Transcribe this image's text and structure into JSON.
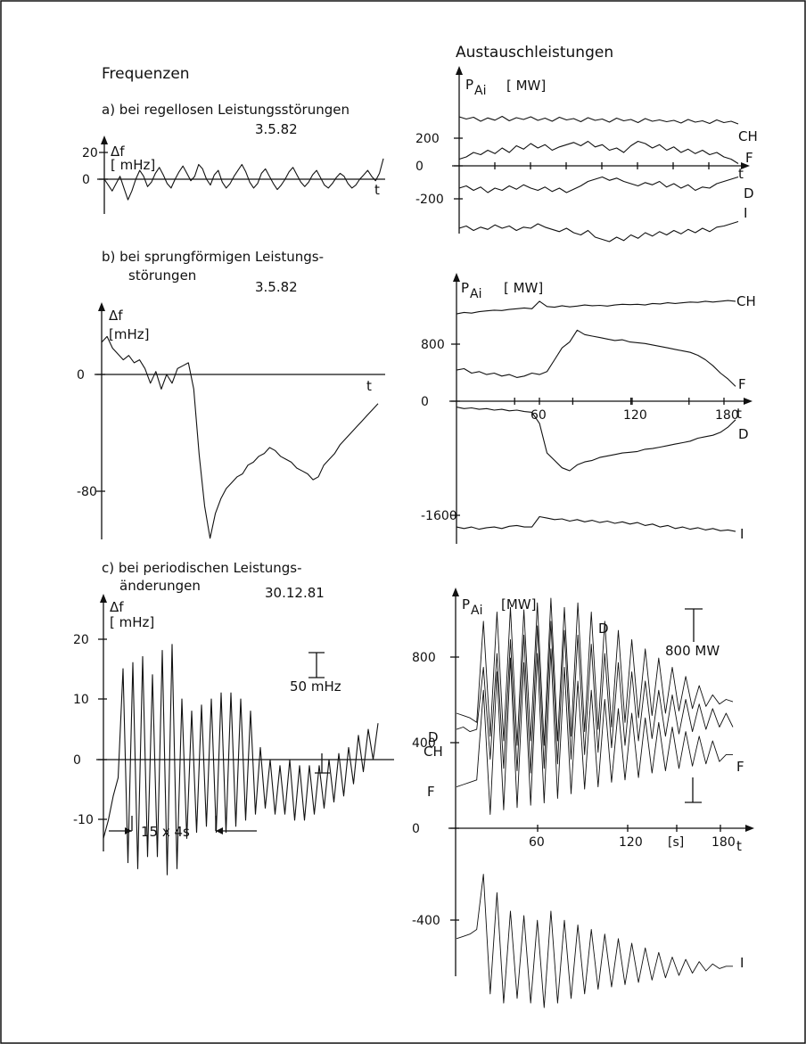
{
  "headings": {
    "left": "Frequenzen",
    "right": "Austauschleistungen"
  },
  "sections": {
    "a": {
      "label": "a) bei regellosen Leistungsstörungen",
      "date": "3.5.82"
    },
    "b": {
      "label_line1": "b) bei sprungförmigen Leistungs-",
      "label_line2": "störungen",
      "date": "3.5.82"
    },
    "c": {
      "label_line1": "c) bei periodischen Leistungs-",
      "label_line2": "änderungen",
      "date": "30.12.81"
    }
  },
  "annotations": {
    "c_freq_scale": "50 mHz",
    "c_freq_period": "15 x 4s",
    "c_power_scale": "800 MW"
  },
  "chart_data": [
    {
      "id": "a-freq",
      "type": "line",
      "ylabel": "Δf",
      "yunit": "[ mHz]",
      "xlabel": "t",
      "yticks": [
        "20",
        "0"
      ],
      "series": [
        {
          "values": [
            0,
            -4,
            -8,
            -3,
            2,
            -6,
            -14,
            -8,
            0,
            6,
            2,
            -5,
            -2,
            4,
            8,
            3,
            -3,
            -6,
            0,
            5,
            9,
            4,
            -1,
            2,
            10,
            7,
            0,
            -4,
            3,
            6,
            -2,
            -6,
            -3,
            2,
            6,
            10,
            5,
            -2,
            -6,
            -3,
            4,
            7,
            2,
            -3,
            -7,
            -4,
            0,
            5,
            8,
            3,
            -2,
            -5,
            -2,
            3,
            6,
            1,
            -4,
            -6,
            -3,
            1,
            4,
            2,
            -3,
            -6,
            -4,
            0,
            3,
            6,
            2,
            -1,
            4,
            14
          ]
        }
      ]
    },
    {
      "id": "a-power",
      "type": "line",
      "ylabel": "P",
      "ylabel_sub": "Ai",
      "yunit": "[ MW]",
      "xlabel": "t",
      "yticks": [
        "200",
        "0",
        "-200"
      ],
      "series": [
        {
          "name": "CH",
          "values": [
            230,
            220,
            228,
            210,
            225,
            215,
            232,
            212,
            226,
            218,
            230,
            214,
            224,
            210,
            228,
            216,
            222,
            208,
            226,
            214,
            220,
            206,
            224,
            212,
            218,
            204,
            222,
            210,
            216,
            208,
            214,
            202,
            218,
            206,
            212,
            200,
            216,
            204,
            210,
            198
          ]
        },
        {
          "name": "F",
          "values": [
            30,
            40,
            60,
            50,
            70,
            55,
            80,
            60,
            90,
            75,
            100,
            80,
            95,
            70,
            85,
            95,
            105,
            90,
            110,
            85,
            95,
            70,
            80,
            60,
            90,
            110,
            100,
            80,
            95,
            70,
            85,
            60,
            75,
            55,
            70,
            50,
            60,
            40,
            30,
            10
          ]
        },
        {
          "name": "D",
          "values": [
            -100,
            -90,
            -110,
            -95,
            -120,
            -100,
            -110,
            -90,
            -105,
            -85,
            -100,
            -110,
            -95,
            -115,
            -100,
            -120,
            -105,
            -90,
            -70,
            -60,
            -50,
            -65,
            -55,
            -70,
            -80,
            -90,
            -75,
            -85,
            -70,
            -95,
            -80,
            -100,
            -85,
            -110,
            -95,
            -100,
            -80,
            -70,
            -60,
            -50
          ]
        },
        {
          "name": "I",
          "values": [
            -280,
            -270,
            -290,
            -275,
            -285,
            -265,
            -280,
            -270,
            -290,
            -275,
            -280,
            -260,
            -275,
            -285,
            -295,
            -280,
            -300,
            -310,
            -290,
            -320,
            -330,
            -340,
            -320,
            -335,
            -310,
            -325,
            -300,
            -315,
            -295,
            -310,
            -290,
            -305,
            -285,
            -300,
            -280,
            -295,
            -275,
            -270,
            -260,
            -250
          ]
        }
      ]
    },
    {
      "id": "b-freq",
      "type": "line",
      "ylabel": "Δf",
      "yunit": "[mHz]",
      "xlabel": "t",
      "yticks": [
        "0",
        "-80"
      ],
      "series": [
        {
          "values": [
            22,
            26,
            18,
            14,
            10,
            13,
            8,
            10,
            4,
            -6,
            2,
            -10,
            0,
            -6,
            4,
            6,
            8,
            -10,
            -55,
            -90,
            -112,
            -95,
            -85,
            -78,
            -74,
            -70,
            -68,
            -62,
            -60,
            -56,
            -54,
            -50,
            -52,
            -56,
            -58,
            -60,
            -64,
            -66,
            -68,
            -72,
            -70,
            -62,
            -58,
            -54,
            -48,
            -44,
            -40,
            -36,
            -32,
            -28,
            -24,
            -20
          ]
        }
      ]
    },
    {
      "id": "b-power",
      "type": "line",
      "ylabel": "P",
      "ylabel_sub": "Ai",
      "yunit": "[ MW]",
      "xlabel": "t",
      "yticks": [
        "800",
        "0",
        "-1600"
      ],
      "xticks": [
        "60",
        "120",
        "180"
      ],
      "series": [
        {
          "name": "CH",
          "values": [
            1180,
            1200,
            1190,
            1210,
            1220,
            1230,
            1225,
            1240,
            1250,
            1260,
            1250,
            1350,
            1280,
            1270,
            1290,
            1275,
            1285,
            1300,
            1290,
            1295,
            1285,
            1300,
            1310,
            1305,
            1310,
            1300,
            1320,
            1315,
            1330,
            1320,
            1330,
            1340,
            1335,
            1350,
            1340,
            1350,
            1360,
            1350
          ]
        },
        {
          "name": "F",
          "values": [
            420,
            440,
            380,
            400,
            360,
            380,
            340,
            360,
            320,
            340,
            380,
            360,
            400,
            560,
            720,
            800,
            960,
            900,
            880,
            860,
            840,
            820,
            830,
            800,
            790,
            780,
            760,
            740,
            720,
            700,
            680,
            660,
            620,
            560,
            480,
            380,
            300,
            200
          ]
        },
        {
          "name": "D",
          "values": [
            -80,
            -100,
            -90,
            -110,
            -100,
            -120,
            -110,
            -130,
            -120,
            -140,
            -150,
            -300,
            -700,
            -800,
            -900,
            -940,
            -860,
            -820,
            -800,
            -760,
            -740,
            -720,
            -700,
            -690,
            -680,
            -650,
            -640,
            -620,
            -600,
            -580,
            -560,
            -540,
            -500,
            -480,
            -460,
            -420,
            -350,
            -250
          ]
        },
        {
          "name": "I",
          "values": [
            -1700,
            -1720,
            -1700,
            -1730,
            -1710,
            -1700,
            -1720,
            -1690,
            -1680,
            -1700,
            -1700,
            -1560,
            -1580,
            -1600,
            -1590,
            -1620,
            -1600,
            -1630,
            -1610,
            -1640,
            -1620,
            -1650,
            -1630,
            -1660,
            -1640,
            -1680,
            -1660,
            -1700,
            -1680,
            -1720,
            -1700,
            -1730,
            -1710,
            -1740,
            -1720,
            -1750,
            -1740,
            -1760
          ]
        }
      ]
    },
    {
      "id": "c-freq",
      "type": "line",
      "ylabel": "Δf",
      "yunit": "[ mHz]",
      "xlabel": "",
      "yticks": [
        "20",
        "10",
        "0",
        "-10"
      ],
      "series": [
        {
          "values": [
            -13,
            -10,
            -6,
            -3,
            15,
            -17,
            16,
            -18,
            17,
            -16,
            14,
            -16,
            18,
            -19,
            19,
            -18,
            10,
            -13,
            8,
            -12,
            9,
            -11,
            10,
            -12,
            11,
            -12,
            11,
            -11,
            10,
            -10,
            8,
            -9,
            2,
            -8,
            0,
            -9,
            -1,
            -9,
            0,
            -10,
            -1,
            -10,
            -1,
            -9,
            -1,
            -8,
            0,
            -7,
            1,
            -6,
            2,
            -4,
            4,
            -2,
            5,
            0,
            6
          ]
        }
      ]
    },
    {
      "id": "c-power",
      "type": "line",
      "ylabel": "P",
      "ylabel_sub": "Ai",
      "yunit": "[MW]",
      "xlabel": "t",
      "yticks": [
        "800",
        "400",
        "0",
        "-400"
      ],
      "xticks": [
        "60",
        "120",
        "[s]",
        "180"
      ],
      "series": [
        {
          "name": "D",
          "values": [
            500,
            490,
            480,
            460,
            900,
            400,
            940,
            380,
            960,
            360,
            950,
            380,
            980,
            360,
            1000,
            380,
            960,
            400,
            980,
            420,
            940,
            430,
            900,
            440,
            860,
            460,
            820,
            480,
            780,
            490,
            740,
            500,
            700,
            510,
            660,
            520,
            620,
            530,
            580,
            540,
            560,
            550
          ]
        },
        {
          "name": "CH",
          "values": [
            430,
            440,
            420,
            430,
            700,
            300,
            760,
            260,
            820,
            250,
            840,
            240,
            880,
            260,
            900,
            280,
            860,
            300,
            840,
            320,
            800,
            330,
            760,
            350,
            720,
            360,
            680,
            380,
            640,
            390,
            600,
            400,
            580,
            410,
            560,
            420,
            540,
            430,
            520,
            440,
            500,
            440
          ]
        },
        {
          "name": "F",
          "values": [
            180,
            190,
            200,
            210,
            600,
            60,
            680,
            80,
            740,
            90,
            720,
            100,
            760,
            110,
            780,
            130,
            700,
            150,
            640,
            170,
            600,
            180,
            560,
            200,
            520,
            210,
            500,
            220,
            480,
            240,
            460,
            250,
            440,
            260,
            420,
            270,
            400,
            280,
            380,
            290,
            320,
            320
          ]
        },
        {
          "name": "I",
          "values": [
            -480,
            -470,
            -460,
            -440,
            -200,
            -720,
            -280,
            -760,
            -360,
            -740,
            -380,
            -760,
            -400,
            -780,
            -360,
            -760,
            -400,
            -740,
            -420,
            -720,
            -440,
            -700,
            -460,
            -690,
            -480,
            -680,
            -500,
            -670,
            -520,
            -660,
            -540,
            -650,
            -560,
            -640,
            -570,
            -630,
            -580,
            -620,
            -590,
            -610,
            -600,
            -600
          ]
        }
      ]
    }
  ]
}
